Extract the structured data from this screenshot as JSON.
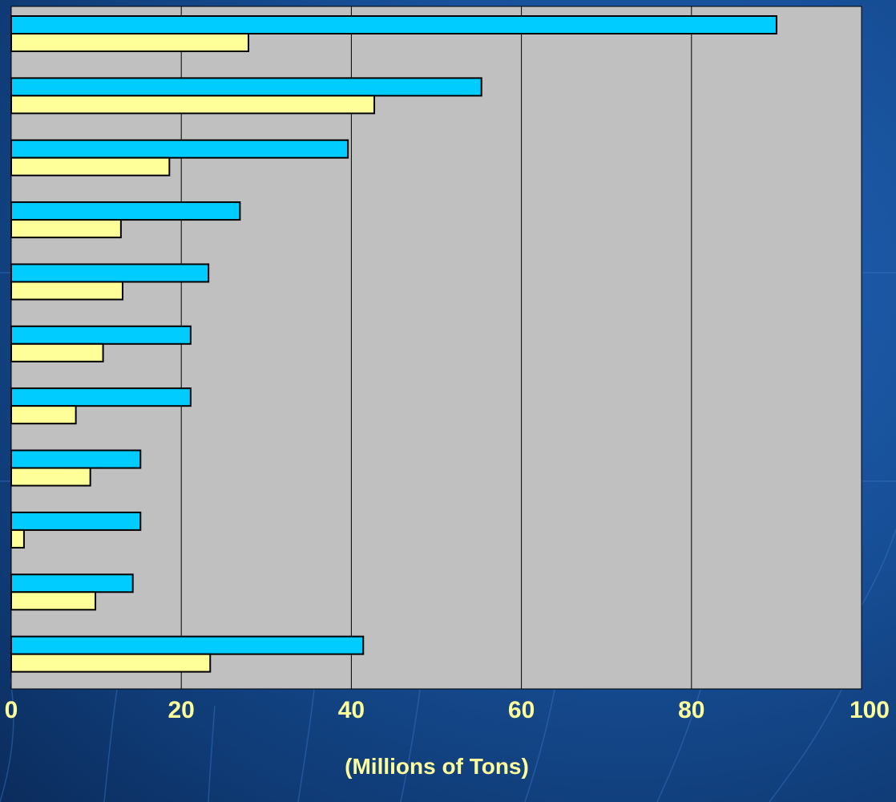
{
  "chart_data": {
    "type": "bar",
    "orientation": "horizontal",
    "xlabel": "(Millions of Tons)",
    "xlim": [
      0,
      100
    ],
    "xticks": [
      "0",
      "20",
      "40",
      "60",
      "80",
      "100"
    ],
    "grid": "vertical",
    "series": [
      {
        "color": "#00ccff",
        "values": [
          90,
          55.3,
          39.6,
          26.9,
          23.2,
          21.1,
          21.1,
          15.2,
          15.2,
          14.3,
          41.4
        ]
      },
      {
        "color": "#ffff99",
        "values": [
          27.9,
          42.7,
          18.6,
          12.9,
          13.1,
          10.8,
          7.6,
          9.3,
          1.5,
          9.9,
          23.4
        ]
      }
    ]
  },
  "colors": {
    "plot_background": "#c0c0c0",
    "gridline": "#000000",
    "tick_text": "#ffff99"
  }
}
